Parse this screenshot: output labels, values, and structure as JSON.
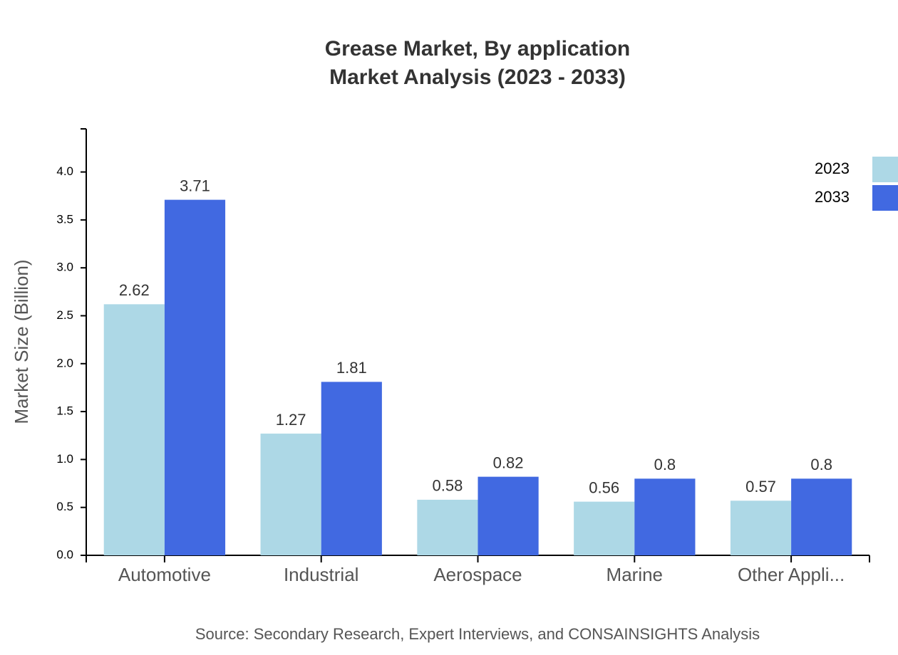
{
  "chart_data": {
    "type": "bar",
    "title": "Grease Market, By application",
    "subtitle": "Market Analysis (2023 - 2033)",
    "y_label": "Market Size (Billion)",
    "source": "Source: Secondary Research, Expert Interviews, and CONSAINSIGHTS Analysis",
    "categories": [
      "Automotive",
      "Industrial",
      "Aerospace",
      "Marine",
      "Other Appli..."
    ],
    "series": [
      {
        "name": "2023",
        "color": "#add8e6",
        "values": [
          2.62,
          1.27,
          0.58,
          0.56,
          0.57
        ]
      },
      {
        "name": "2033",
        "color": "#4169e1",
        "values": [
          3.71,
          1.81,
          0.82,
          0.8,
          0.8
        ]
      }
    ],
    "ylim": [
      0,
      4.45
    ],
    "yticks": [
      {
        "value": 0,
        "label": "0.0"
      },
      0.5,
      {
        "value": 1,
        "label": "1.0"
      },
      1.5,
      {
        "value": 2,
        "label": "2.0"
      },
      2.5,
      {
        "value": 3,
        "label": "3.0"
      },
      3.5,
      {
        "value": 4,
        "label": "4.0"
      }
    ],
    "grid": false,
    "legend": "top-right"
  }
}
